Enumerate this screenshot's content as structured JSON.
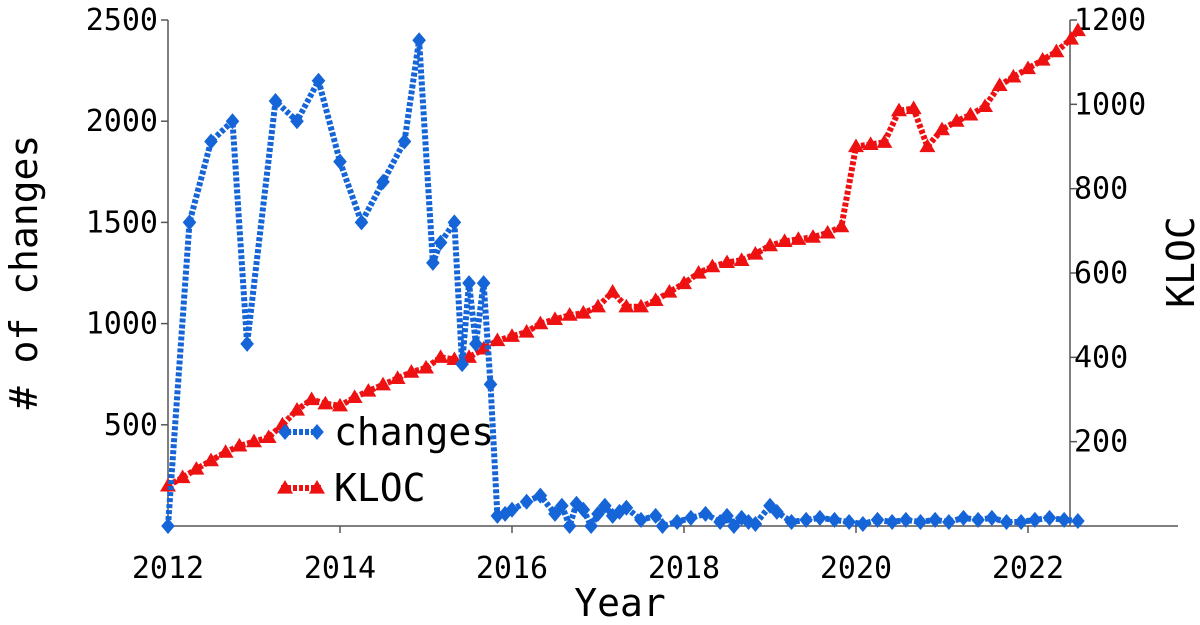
{
  "chart_data": {
    "type": "line",
    "title": "",
    "xlabel": "Year",
    "ylabel_left": "# of changes",
    "ylabel_right": "KLOC",
    "xlim": [
      2012,
      2023.4
    ],
    "ylim_left": [
      0,
      2500
    ],
    "ylim_right": [
      0,
      1200
    ],
    "x_ticks": [
      2012,
      2014,
      2016,
      2018,
      2020,
      2022
    ],
    "y_ticks_left": [
      500,
      1000,
      1500,
      2000,
      2500
    ],
    "y_ticks_right": [
      200,
      400,
      600,
      800,
      1000,
      1200
    ],
    "grid": false,
    "legend_position": "lower-left",
    "series": [
      {
        "name": "changes",
        "axis": "left",
        "color": "#1565d8",
        "marker": "diamond",
        "x": [
          2012.0,
          2012.25,
          2012.5,
          2012.75,
          2012.92,
          2013.25,
          2013.5,
          2013.75,
          2014.0,
          2014.25,
          2014.5,
          2014.75,
          2014.92,
          2015.08,
          2015.17,
          2015.33,
          2015.42,
          2015.5,
          2015.58,
          2015.67,
          2015.75,
          2015.83,
          2015.92,
          2016.0,
          2016.17,
          2016.33,
          2016.5,
          2016.58,
          2016.67,
          2016.75,
          2016.83,
          2016.92,
          2017.0,
          2017.08,
          2017.17,
          2017.25,
          2017.33,
          2017.5,
          2017.67,
          2017.75,
          2017.92,
          2018.08,
          2018.25,
          2018.42,
          2018.5,
          2018.58,
          2018.67,
          2018.75,
          2018.83,
          2019.0,
          2019.08,
          2019.25,
          2019.42,
          2019.58,
          2019.75,
          2019.92,
          2020.08,
          2020.25,
          2020.42,
          2020.58,
          2020.75,
          2020.92,
          2021.08,
          2021.25,
          2021.42,
          2021.58,
          2021.75,
          2021.92,
          2022.08,
          2022.25,
          2022.42,
          2022.58
        ],
        "values": [
          0,
          1500,
          1900,
          2000,
          900,
          2100,
          2000,
          2200,
          1800,
          1500,
          1700,
          1900,
          2400,
          1300,
          1400,
          1500,
          800,
          1200,
          900,
          1200,
          700,
          50,
          60,
          80,
          120,
          150,
          60,
          100,
          0,
          110,
          80,
          0,
          60,
          100,
          50,
          70,
          90,
          30,
          50,
          0,
          20,
          40,
          60,
          20,
          50,
          0,
          40,
          20,
          10,
          100,
          70,
          20,
          30,
          40,
          30,
          20,
          10,
          30,
          20,
          30,
          20,
          30,
          20,
          40,
          30,
          40,
          20,
          20,
          30,
          40,
          30,
          25
        ]
      },
      {
        "name": "KLOC",
        "axis": "right",
        "color": "#ee1111",
        "marker": "triangle",
        "x": [
          2012.0,
          2012.17,
          2012.33,
          2012.5,
          2012.67,
          2012.83,
          2013.0,
          2013.17,
          2013.33,
          2013.5,
          2013.67,
          2013.83,
          2014.0,
          2014.17,
          2014.33,
          2014.5,
          2014.67,
          2014.83,
          2015.0,
          2015.17,
          2015.33,
          2015.5,
          2015.67,
          2015.83,
          2016.0,
          2016.17,
          2016.33,
          2016.5,
          2016.67,
          2016.83,
          2017.0,
          2017.17,
          2017.33,
          2017.5,
          2017.67,
          2017.83,
          2018.0,
          2018.17,
          2018.33,
          2018.5,
          2018.67,
          2018.83,
          2019.0,
          2019.17,
          2019.33,
          2019.5,
          2019.67,
          2019.83,
          2020.0,
          2020.17,
          2020.33,
          2020.5,
          2020.67,
          2020.83,
          2021.0,
          2021.17,
          2021.33,
          2021.5,
          2021.67,
          2021.83,
          2022.0,
          2022.17,
          2022.33,
          2022.5,
          2022.58
        ],
        "values": [
          95,
          115,
          135,
          155,
          175,
          190,
          200,
          210,
          240,
          275,
          300,
          290,
          285,
          305,
          320,
          335,
          350,
          365,
          375,
          400,
          395,
          400,
          420,
          440,
          450,
          460,
          480,
          490,
          500,
          505,
          520,
          555,
          520,
          520,
          535,
          555,
          575,
          600,
          615,
          625,
          630,
          645,
          665,
          675,
          680,
          685,
          695,
          710,
          900,
          905,
          910,
          985,
          990,
          900,
          940,
          960,
          975,
          995,
          1045,
          1065,
          1085,
          1105,
          1125,
          1155,
          1175
        ]
      }
    ]
  }
}
